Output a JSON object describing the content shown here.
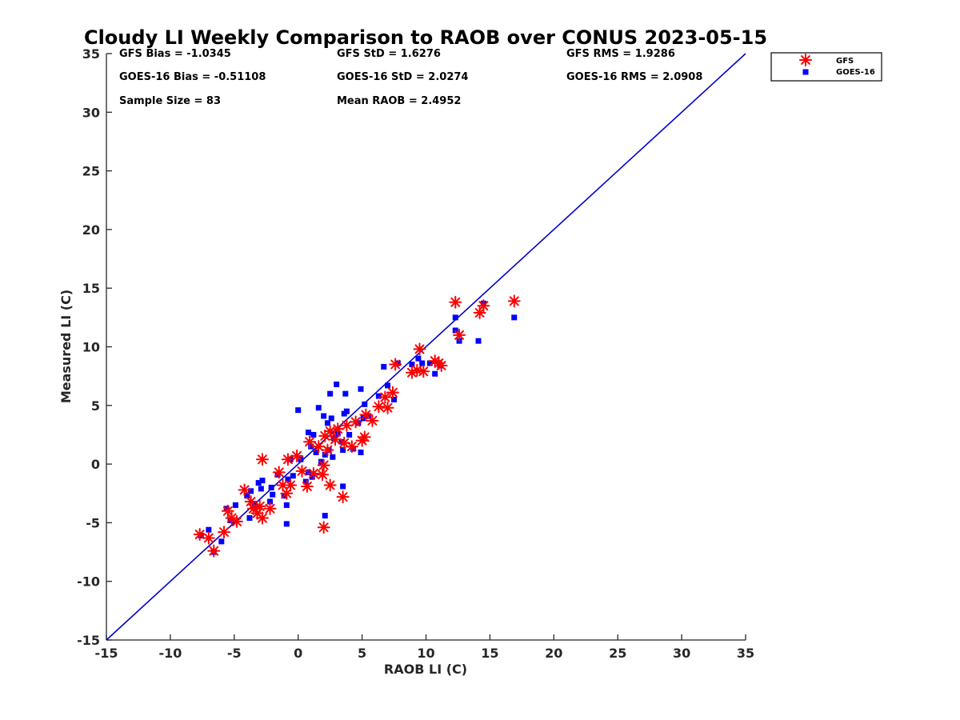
{
  "chart_data": {
    "type": "scatter",
    "title": "Cloudy LI Weekly Comparison to RAOB over CONUS 2023-05-15",
    "xlabel": "RAOB LI (C)",
    "ylabel": "Measured LI (C)",
    "xlim": [
      -15,
      35
    ],
    "ylim": [
      -15,
      35
    ],
    "xticks": [
      -15,
      -10,
      -5,
      0,
      5,
      10,
      15,
      20,
      25,
      30,
      35
    ],
    "yticks": [
      -15,
      -10,
      -5,
      0,
      5,
      10,
      15,
      20,
      25,
      30,
      35
    ],
    "grid": false,
    "legend_position": "outside top-right",
    "reference_line": {
      "from": [
        -15,
        -15
      ],
      "to": [
        35,
        35
      ],
      "color": "#0000cc"
    },
    "stats": [
      [
        "GFS Bias = -1.0345",
        "GFS StD = 1.6276",
        "GFS RMS = 1.9286"
      ],
      [
        "GOES-16 Bias = -0.51108",
        "GOES-16 StD = 2.0274",
        "GOES-16 RMS = 2.0908"
      ],
      [
        "Sample Size = 83",
        "Mean RAOB = 2.4952",
        ""
      ]
    ],
    "series": [
      {
        "name": "GFS",
        "marker": "asterisk",
        "color": "#ff0000",
        "points": [
          [
            -7.7,
            -6.0
          ],
          [
            -7.0,
            -6.3
          ],
          [
            -6.6,
            -7.4
          ],
          [
            -5.8,
            -5.8
          ],
          [
            -5.5,
            -4.0
          ],
          [
            -5.2,
            -4.6
          ],
          [
            -4.8,
            -4.9
          ],
          [
            -4.2,
            -2.2
          ],
          [
            -3.7,
            -3.2
          ],
          [
            -3.5,
            -3.8
          ],
          [
            -3.2,
            -4.2
          ],
          [
            -3.0,
            -3.6
          ],
          [
            -2.8,
            -4.6
          ],
          [
            -2.8,
            0.4
          ],
          [
            -2.2,
            -3.8
          ],
          [
            -1.5,
            -0.7
          ],
          [
            -1.2,
            -1.8
          ],
          [
            -0.9,
            -2.5
          ],
          [
            -0.8,
            0.4
          ],
          [
            -0.6,
            -1.8
          ],
          [
            -0.1,
            0.7
          ],
          [
            0.3,
            -0.6
          ],
          [
            0.7,
            -1.9
          ],
          [
            0.9,
            1.9
          ],
          [
            1.2,
            -0.8
          ],
          [
            1.6,
            1.5
          ],
          [
            1.9,
            -0.9
          ],
          [
            2.0,
            -5.4
          ],
          [
            2.0,
            -0.1
          ],
          [
            2.1,
            2.4
          ],
          [
            2.3,
            1.2
          ],
          [
            2.5,
            -1.8
          ],
          [
            2.5,
            2.8
          ],
          [
            2.9,
            2.1
          ],
          [
            3.1,
            3.0
          ],
          [
            3.5,
            -2.8
          ],
          [
            3.6,
            1.8
          ],
          [
            3.8,
            3.3
          ],
          [
            4.2,
            1.5
          ],
          [
            4.5,
            3.6
          ],
          [
            5.0,
            2.0
          ],
          [
            5.2,
            2.3
          ],
          [
            5.3,
            4.2
          ],
          [
            5.8,
            3.7
          ],
          [
            6.3,
            4.9
          ],
          [
            6.8,
            5.7
          ],
          [
            7.0,
            4.8
          ],
          [
            7.4,
            6.1
          ],
          [
            7.6,
            8.5
          ],
          [
            8.9,
            7.8
          ],
          [
            9.3,
            8.0
          ],
          [
            9.5,
            9.8
          ],
          [
            9.8,
            7.9
          ],
          [
            10.7,
            8.8
          ],
          [
            11.0,
            8.6
          ],
          [
            11.2,
            8.4
          ],
          [
            12.3,
            13.8
          ],
          [
            12.6,
            11.0
          ],
          [
            14.2,
            12.9
          ],
          [
            14.5,
            13.5
          ],
          [
            16.9,
            13.9
          ]
        ]
      },
      {
        "name": "GOES-16",
        "marker": "square",
        "color": "#0000ff",
        "points": [
          [
            -7.6,
            -6.1
          ],
          [
            -7.0,
            -5.6
          ],
          [
            -6.6,
            -7.5
          ],
          [
            -6.0,
            -6.6
          ],
          [
            -5.6,
            -3.8
          ],
          [
            -5.3,
            -4.8
          ],
          [
            -4.9,
            -3.5
          ],
          [
            -4.0,
            -2.7
          ],
          [
            -3.8,
            -4.6
          ],
          [
            -3.7,
            -2.3
          ],
          [
            -3.4,
            -3.5
          ],
          [
            -3.1,
            -1.6
          ],
          [
            -2.9,
            -2.1
          ],
          [
            -2.8,
            -1.4
          ],
          [
            -2.2,
            -3.2
          ],
          [
            -2.1,
            -2.0
          ],
          [
            -2.0,
            -2.6
          ],
          [
            -1.6,
            -0.9
          ],
          [
            -1.1,
            -2.7
          ],
          [
            -0.9,
            -3.5
          ],
          [
            -0.9,
            -5.1
          ],
          [
            -0.8,
            -1.3
          ],
          [
            -0.6,
            0.4
          ],
          [
            -0.4,
            -1.0
          ],
          [
            0.0,
            4.6
          ],
          [
            0.2,
            0.4
          ],
          [
            0.6,
            -1.5
          ],
          [
            0.8,
            2.7
          ],
          [
            0.8,
            -0.7
          ],
          [
            1.0,
            1.5
          ],
          [
            1.1,
            -1.1
          ],
          [
            1.2,
            2.5
          ],
          [
            1.4,
            1.0
          ],
          [
            1.6,
            4.8
          ],
          [
            1.8,
            0.2
          ],
          [
            2.0,
            4.1
          ],
          [
            2.1,
            0.8
          ],
          [
            2.1,
            -4.4
          ],
          [
            2.3,
            3.5
          ],
          [
            2.4,
            1.2
          ],
          [
            2.5,
            6.0
          ],
          [
            2.6,
            3.9
          ],
          [
            2.7,
            0.6
          ],
          [
            2.8,
            2.2
          ],
          [
            3.0,
            6.8
          ],
          [
            3.1,
            2.6
          ],
          [
            3.4,
            1.9
          ],
          [
            3.5,
            1.2
          ],
          [
            3.5,
            -1.9
          ],
          [
            3.6,
            4.3
          ],
          [
            3.7,
            6.0
          ],
          [
            3.8,
            4.5
          ],
          [
            4.0,
            2.5
          ],
          [
            4.3,
            1.3
          ],
          [
            4.7,
            3.5
          ],
          [
            4.9,
            6.4
          ],
          [
            4.9,
            1.0
          ],
          [
            5.1,
            3.9
          ],
          [
            5.2,
            5.1
          ],
          [
            5.5,
            4.1
          ],
          [
            6.3,
            5.8
          ],
          [
            6.7,
            8.3
          ],
          [
            7.0,
            6.7
          ],
          [
            7.5,
            5.5
          ],
          [
            7.8,
            8.6
          ],
          [
            8.9,
            8.5
          ],
          [
            9.4,
            9.0
          ],
          [
            9.7,
            8.6
          ],
          [
            10.3,
            8.6
          ],
          [
            10.7,
            7.7
          ],
          [
            11.1,
            8.4
          ],
          [
            12.3,
            12.5
          ],
          [
            12.3,
            11.4
          ],
          [
            12.6,
            10.5
          ],
          [
            14.1,
            10.5
          ],
          [
            14.5,
            13.7
          ],
          [
            16.9,
            12.5
          ]
        ]
      }
    ]
  }
}
